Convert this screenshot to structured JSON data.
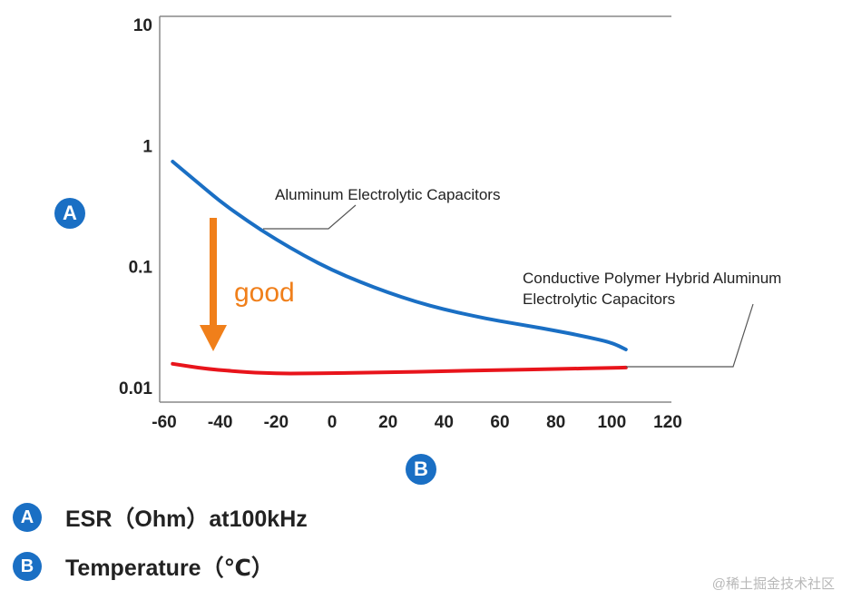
{
  "chart_data": {
    "type": "line",
    "x_axis": {
      "range": [
        -60,
        120
      ],
      "ticks": [
        -60,
        -40,
        -20,
        0,
        20,
        40,
        60,
        80,
        100,
        120
      ]
    },
    "y_axis": {
      "scale": "log",
      "range": [
        0.01,
        10
      ],
      "ticks": [
        0.01,
        0.1,
        1,
        10
      ],
      "tick_labels": [
        "0.01",
        "0.1",
        "1",
        "10"
      ]
    },
    "grid": false,
    "series": [
      {
        "name": "Aluminum Electrolytic Capacitors",
        "color": "#1a6fc4",
        "x": [
          -57,
          -50,
          -40,
          -30,
          -20,
          -10,
          0,
          10,
          20,
          30,
          40,
          50,
          60,
          70,
          80,
          90,
          100,
          105
        ],
        "y": [
          0.75,
          0.55,
          0.35,
          0.24,
          0.17,
          0.125,
          0.095,
          0.076,
          0.062,
          0.052,
          0.045,
          0.04,
          0.036,
          0.033,
          0.03,
          0.027,
          0.024,
          0.021
        ]
      },
      {
        "name_lines": [
          "Conductive Polymer Hybrid Aluminum",
          "Electrolytic Capacitors"
        ],
        "color": "#e8141b",
        "x": [
          -57,
          -45,
          -30,
          -20,
          -10,
          0,
          20,
          40,
          60,
          80,
          100,
          105
        ],
        "y": [
          0.016,
          0.0145,
          0.0136,
          0.0133,
          0.0133,
          0.0134,
          0.0136,
          0.0139,
          0.0142,
          0.0145,
          0.0148,
          0.0149
        ]
      }
    ],
    "annotation": {
      "text": "good",
      "color": "#f07f1a"
    },
    "y_axis_badge": "A",
    "x_axis_badge": "B"
  },
  "legend": [
    {
      "badge": "A",
      "text": "ESR（Ohm）at100kHz"
    },
    {
      "badge": "B",
      "text": "Temperature（℃）"
    }
  ],
  "watermark": "@稀土掘金技术社区"
}
